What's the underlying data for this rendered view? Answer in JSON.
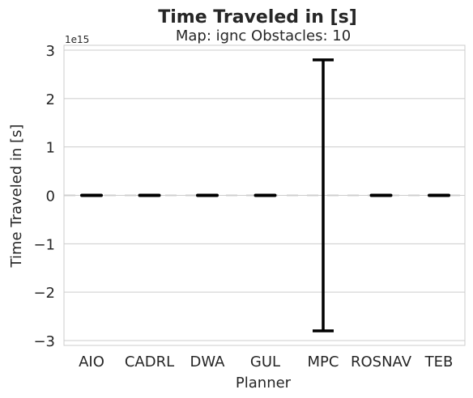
{
  "chart_data": {
    "type": "bar",
    "title": "Time Traveled in [s]",
    "subtitle": "Map: ignc Obstacles: 10",
    "xlabel": "Planner",
    "ylabel": "Time Traveled in [s]",
    "y_offset_label": "1e15",
    "categories": [
      "AIO",
      "CADRL",
      "DWA",
      "GUL",
      "MPC",
      "ROSNAV",
      "TEB"
    ],
    "values": [
      0,
      0,
      0,
      0,
      0,
      0,
      0
    ],
    "error": [
      0,
      0,
      0,
      0,
      2.8,
      0,
      0
    ],
    "ylim": [
      -3.1,
      3.1
    ],
    "yticks": [
      3,
      2,
      1,
      0,
      -1,
      -2,
      -3
    ],
    "ytick_labels": [
      "3",
      "2",
      "1",
      "0",
      "−1",
      "−2",
      "−3"
    ],
    "grid": true,
    "colors": {
      "axes_edge": "#cccccc",
      "grid": "#cccccc",
      "errorbar": "#000000",
      "mean_line": "#000000",
      "zero_line": "#cfcfcf"
    }
  }
}
